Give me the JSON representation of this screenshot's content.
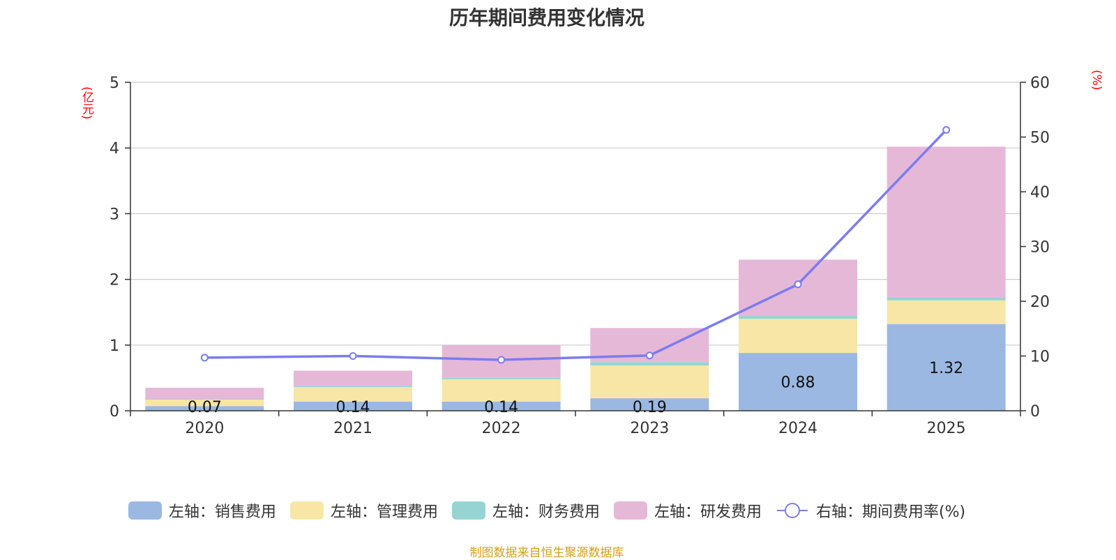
{
  "title": "历年期间费用变化情况",
  "left_unit": "(亿元)",
  "right_unit": "(%)",
  "source": "制图数据来自恒生聚源数据库",
  "chart_data": {
    "type": "bar",
    "stacked": true,
    "categories": [
      "2020",
      "2021",
      "2022",
      "2023",
      "2024",
      "2025"
    ],
    "series": [
      {
        "name": "左轴：销售费用",
        "axis": "left",
        "color": "#9bb8e2",
        "values": [
          0.07,
          0.14,
          0.14,
          0.19,
          0.88,
          1.32
        ],
        "labels": [
          "0.07",
          "0.14",
          "0.14",
          "0.19",
          "0.88",
          "1.32"
        ]
      },
      {
        "name": "左轴：管理费用",
        "axis": "left",
        "color": "#f7e6a6",
        "values": [
          0.1,
          0.22,
          0.34,
          0.5,
          0.52,
          0.36
        ]
      },
      {
        "name": "左轴：财务费用",
        "axis": "left",
        "color": "#96d4d4",
        "values": [
          0.01,
          0.02,
          0.02,
          0.05,
          0.05,
          0.04
        ]
      },
      {
        "name": "左轴：研发费用",
        "axis": "left",
        "color": "#e6b8d8",
        "values": [
          0.17,
          0.23,
          0.5,
          0.52,
          0.85,
          2.3
        ]
      },
      {
        "name": "右轴：期间费用率(%)",
        "axis": "right",
        "type": "line",
        "color": "#7b7cf0",
        "values": [
          9.7,
          10.0,
          9.3,
          10.1,
          23.1,
          51.3
        ]
      }
    ],
    "y_left": {
      "min": 0,
      "max": 5,
      "ticks": [
        "0",
        "1",
        "2",
        "3",
        "4",
        "5"
      ]
    },
    "y_right": {
      "min": 0,
      "max": 60,
      "ticks": [
        "0",
        "10",
        "20",
        "30",
        "40",
        "50",
        "60"
      ]
    },
    "grid": true,
    "legend_position": "bottom"
  }
}
